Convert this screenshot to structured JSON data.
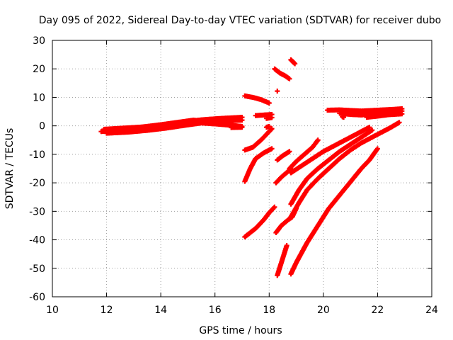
{
  "chart_data": {
    "type": "scatter",
    "title": "Day 095 of 2022, Sidereal Day-to-day VTEC variation (SDTVAR) for receiver dubo",
    "xlabel": "GPS time / hours",
    "ylabel": "SDTVAR / TECUs",
    "xlim": [
      10,
      24
    ],
    "ylim": [
      -60,
      30
    ],
    "xticks": [
      10,
      12,
      14,
      16,
      18,
      20,
      22,
      24
    ],
    "yticks": [
      -60,
      -50,
      -40,
      -30,
      -20,
      -10,
      0,
      10,
      20,
      30
    ],
    "xtick_labels": [
      "10",
      "12",
      "14",
      "16",
      "18",
      "20",
      "22",
      "24"
    ],
    "ytick_labels": [
      "-60",
      "-50",
      "-40",
      "-30",
      "-20",
      "-10",
      "0",
      "10",
      "20",
      "30"
    ],
    "grid": true,
    "marker_color": "#ff0000",
    "series": [
      {
        "name": "track-1",
        "points": [
          [
            11.8,
            -2
          ],
          [
            12.5,
            -1.6
          ],
          [
            13.2,
            -1
          ],
          [
            13.8,
            0
          ],
          [
            14.4,
            0.8
          ],
          [
            15.0,
            1.6
          ],
          [
            15.6,
            2.2
          ],
          [
            16.2,
            2.6
          ],
          [
            16.8,
            2.9
          ],
          [
            17.0,
            3
          ]
        ]
      },
      {
        "name": "track-2",
        "points": [
          [
            11.9,
            -1.2
          ],
          [
            12.6,
            -0.8
          ],
          [
            13.3,
            -0.4
          ],
          [
            14.0,
            0.4
          ],
          [
            14.6,
            1.2
          ],
          [
            15.2,
            2.0
          ],
          [
            15.8,
            1.6
          ],
          [
            16.4,
            1.8
          ],
          [
            17.0,
            2
          ]
        ]
      },
      {
        "name": "track-3",
        "points": [
          [
            12.0,
            -2.6
          ],
          [
            12.8,
            -2.2
          ],
          [
            13.5,
            -1.6
          ],
          [
            14.2,
            -0.8
          ],
          [
            14.9,
            0.2
          ],
          [
            15.5,
            1
          ],
          [
            16.1,
            0.6
          ],
          [
            16.6,
            0.2
          ],
          [
            17.0,
            -0.2
          ]
        ]
      },
      {
        "name": "track-4",
        "points": [
          [
            16.6,
            -0.6
          ],
          [
            17.0,
            -0.5
          ]
        ]
      },
      {
        "name": "track-5",
        "points": [
          [
            17.1,
            10.5
          ],
          [
            17.4,
            10
          ],
          [
            17.7,
            9.2
          ],
          [
            18.0,
            8
          ]
        ]
      },
      {
        "name": "track-6",
        "points": [
          [
            17.5,
            3.6
          ],
          [
            17.8,
            3.8
          ],
          [
            18.1,
            4
          ]
        ]
      },
      {
        "name": "track-7",
        "points": [
          [
            17.9,
            2.6
          ],
          [
            18.1,
            2.9
          ]
        ]
      },
      {
        "name": "track-8",
        "points": [
          [
            17.9,
            -0.5
          ],
          [
            18.0,
            -0.2
          ]
        ]
      },
      {
        "name": "track-9",
        "points": [
          [
            17.1,
            -8.5
          ],
          [
            17.4,
            -7.5
          ],
          [
            17.7,
            -5
          ],
          [
            17.9,
            -3
          ],
          [
            18.1,
            -1
          ]
        ]
      },
      {
        "name": "track-10",
        "points": [
          [
            17.1,
            -19.5
          ],
          [
            17.3,
            -15
          ],
          [
            17.5,
            -11.5
          ]
        ]
      },
      {
        "name": "track-11",
        "points": [
          [
            17.5,
            -11.5
          ],
          [
            17.8,
            -9.5
          ],
          [
            18.1,
            -8
          ]
        ]
      },
      {
        "name": "track-12",
        "points": [
          [
            17.1,
            -39
          ],
          [
            17.5,
            -36
          ],
          [
            17.8,
            -33
          ],
          [
            18.0,
            -30.5
          ],
          [
            18.2,
            -28.5
          ]
        ]
      },
      {
        "name": "track-13",
        "points": [
          [
            18.2,
            20
          ],
          [
            18.4,
            18.5
          ],
          [
            18.6,
            17.5
          ],
          [
            18.75,
            16.5
          ]
        ]
      },
      {
        "name": "track-14",
        "points": [
          [
            18.3,
            12.2
          ]
        ]
      },
      {
        "name": "track-15",
        "points": [
          [
            18.8,
            23.2
          ],
          [
            18.95,
            21.8
          ]
        ]
      },
      {
        "name": "track-16",
        "points": [
          [
            18.3,
            -12
          ],
          [
            18.5,
            -10.5
          ],
          [
            18.75,
            -9
          ]
        ]
      },
      {
        "name": "track-17",
        "points": [
          [
            18.25,
            -20
          ],
          [
            18.45,
            -18
          ],
          [
            18.7,
            -16
          ],
          [
            18.8,
            -15
          ]
        ]
      },
      {
        "name": "track-18",
        "points": [
          [
            18.75,
            -15
          ],
          [
            19.0,
            -12.5
          ],
          [
            19.3,
            -10
          ],
          [
            19.6,
            -7.5
          ],
          [
            19.8,
            -5
          ]
        ]
      },
      {
        "name": "track-19",
        "points": [
          [
            18.8,
            -16.5
          ],
          [
            19.2,
            -14
          ],
          [
            19.6,
            -11.5
          ],
          [
            20.0,
            -9
          ],
          [
            20.4,
            -7
          ],
          [
            20.8,
            -5
          ],
          [
            21.2,
            -3
          ],
          [
            21.5,
            -1.5
          ],
          [
            21.7,
            -0.5
          ]
        ]
      },
      {
        "name": "track-20",
        "points": [
          [
            18.25,
            -37.5
          ],
          [
            18.45,
            -35
          ],
          [
            18.7,
            -33
          ],
          [
            18.85,
            -32
          ],
          [
            19.0,
            -29
          ]
        ]
      },
      {
        "name": "track-21",
        "points": [
          [
            18.8,
            -32
          ],
          [
            19.1,
            -27
          ],
          [
            19.4,
            -22.5
          ],
          [
            19.8,
            -18.5
          ],
          [
            20.2,
            -15
          ],
          [
            20.6,
            -11.5
          ],
          [
            21.0,
            -8.5
          ],
          [
            21.4,
            -6
          ],
          [
            21.8,
            -4
          ],
          [
            22.2,
            -2
          ],
          [
            22.5,
            -0.5
          ],
          [
            22.8,
            1.2
          ]
        ]
      },
      {
        "name": "track-22",
        "points": [
          [
            18.8,
            -27.5
          ],
          [
            19.1,
            -22.5
          ],
          [
            19.4,
            -18.5
          ],
          [
            19.8,
            -15
          ],
          [
            20.2,
            -12
          ],
          [
            20.6,
            -9
          ],
          [
            21.0,
            -6.5
          ],
          [
            21.4,
            -4
          ],
          [
            21.8,
            -1.5
          ]
        ]
      },
      {
        "name": "track-23",
        "points": [
          [
            18.3,
            -52.5
          ],
          [
            18.45,
            -48
          ],
          [
            18.55,
            -45
          ],
          [
            18.65,
            -42
          ]
        ]
      },
      {
        "name": "track-24",
        "points": [
          [
            18.8,
            -52
          ],
          [
            19.0,
            -48
          ],
          [
            19.2,
            -44.5
          ],
          [
            19.4,
            -41
          ],
          [
            19.6,
            -38
          ],
          [
            19.8,
            -35
          ],
          [
            20.0,
            -32
          ],
          [
            20.2,
            -29
          ],
          [
            20.5,
            -25.5
          ],
          [
            20.8,
            -22
          ],
          [
            21.1,
            -18.5
          ],
          [
            21.4,
            -15
          ],
          [
            21.7,
            -12
          ],
          [
            22.0,
            -8
          ]
        ]
      },
      {
        "name": "track-25",
        "points": [
          [
            20.15,
            5.5
          ],
          [
            20.6,
            5.6
          ],
          [
            21.0,
            5.4
          ],
          [
            21.4,
            5.2
          ],
          [
            21.8,
            5.4
          ],
          [
            22.2,
            5.6
          ],
          [
            22.6,
            5.8
          ],
          [
            22.9,
            6
          ]
        ]
      },
      {
        "name": "track-26",
        "points": [
          [
            20.6,
            4.4
          ],
          [
            21.0,
            4.0
          ],
          [
            21.4,
            3.8
          ],
          [
            21.8,
            4.2
          ],
          [
            22.2,
            4.6
          ],
          [
            22.6,
            5.0
          ],
          [
            22.9,
            5.2
          ]
        ]
      },
      {
        "name": "track-27",
        "points": [
          [
            21.6,
            3.0
          ],
          [
            22.0,
            3.4
          ],
          [
            22.4,
            3.9
          ],
          [
            22.9,
            4.2
          ]
        ]
      },
      {
        "name": "track-28",
        "points": [
          [
            20.7,
            3.2
          ],
          [
            20.75,
            3
          ]
        ]
      }
    ]
  }
}
